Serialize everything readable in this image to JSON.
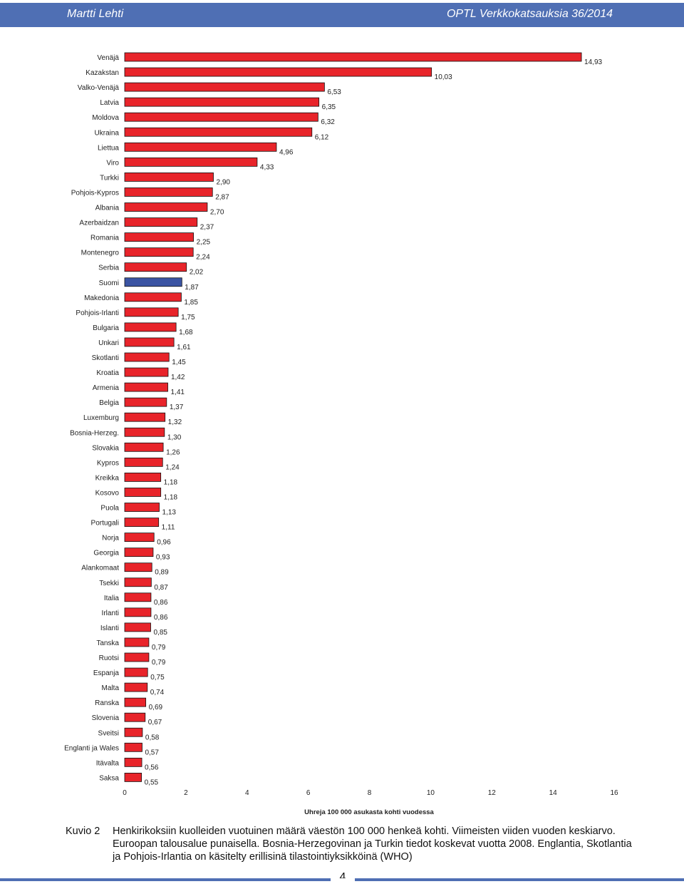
{
  "header": {
    "author": "Martti Lehti",
    "series": "OPTL Verkkokatsauksia 36/2014"
  },
  "colors": {
    "header_bg": "#4f6fb4",
    "bar_default": "#e8242a",
    "bar_highlight": "#3b54a3",
    "bar_stroke": "#111111"
  },
  "chart_data": {
    "type": "bar",
    "orientation": "horizontal",
    "categories": [
      "Venäjä",
      "Kazakstan",
      "Valko-Venäjä",
      "Latvia",
      "Moldova",
      "Ukraina",
      "Liettua",
      "Viro",
      "Turkki",
      "Pohjois-Kypros",
      "Albania",
      "Azerbaidzan",
      "Romania",
      "Montenegro",
      "Serbia",
      "Suomi",
      "Makedonia",
      "Pohjois-Irlanti",
      "Bulgaria",
      "Unkari",
      "Skotlanti",
      "Kroatia",
      "Armenia",
      "Belgia",
      "Luxemburg",
      "Bosnia-Herzeg.",
      "Slovakia",
      "Kypros",
      "Kreikka",
      "Kosovo",
      "Puola",
      "Portugali",
      "Norja",
      "Georgia",
      "Alankomaat",
      "Tsekki",
      "Italia",
      "Irlanti",
      "Islanti",
      "Tanska",
      "Ruotsi",
      "Espanja",
      "Malta",
      "Ranska",
      "Slovenia",
      "Sveitsi",
      "Englanti ja Wales",
      "Itävalta",
      "Saksa"
    ],
    "values": [
      14.93,
      10.03,
      6.53,
      6.35,
      6.32,
      6.12,
      4.96,
      4.33,
      2.9,
      2.87,
      2.7,
      2.37,
      2.25,
      2.24,
      2.02,
      1.87,
      1.85,
      1.75,
      1.68,
      1.61,
      1.45,
      1.42,
      1.41,
      1.37,
      1.32,
      1.3,
      1.26,
      1.24,
      1.18,
      1.18,
      1.13,
      1.11,
      0.96,
      0.93,
      0.89,
      0.87,
      0.86,
      0.86,
      0.85,
      0.79,
      0.79,
      0.75,
      0.74,
      0.69,
      0.67,
      0.58,
      0.57,
      0.56,
      0.55
    ],
    "value_labels": [
      "14,93",
      "10,03",
      "6,53",
      "6,35",
      "6,32",
      "6,12",
      "4,96",
      "4,33",
      "2,90",
      "2,87",
      "2,70",
      "2,37",
      "2,25",
      "2,24",
      "2,02",
      "1,87",
      "1,85",
      "1,75",
      "1,68",
      "1,61",
      "1,45",
      "1,42",
      "1,41",
      "1,37",
      "1,32",
      "1,30",
      "1,26",
      "1,24",
      "1,18",
      "1,18",
      "1,13",
      "1,11",
      "0,96",
      "0,93",
      "0,89",
      "0,87",
      "0,86",
      "0,86",
      "0,85",
      "0,79",
      "0,79",
      "0,75",
      "0,74",
      "0,69",
      "0,67",
      "0,58",
      "0,57",
      "0,56",
      "0,55"
    ],
    "highlight": [
      "Suomi"
    ],
    "xlim": [
      0,
      16
    ],
    "xticks": [
      0,
      2,
      4,
      6,
      8,
      10,
      12,
      14,
      16
    ],
    "xlabel": "Uhreja 100 000 asukasta kohti vuodessa",
    "grid": false,
    "legend": "none"
  },
  "caption": {
    "label": "Kuvio 2",
    "text": "Henkirikoksiin kuolleiden vuotuinen määrä väestön 100 000 henkeä kohti. Viimeisten viiden vuoden keskiarvo. Euroopan talousalue punaisella. Bosnia-Herzegovinan ja Turkin tiedot koskevat vuotta 2008. Englantia, Skotlantia ja Pohjois-Irlantia on käsitelty erillisinä tilastointiyksikköinä (WHO)"
  },
  "page_number": "4"
}
